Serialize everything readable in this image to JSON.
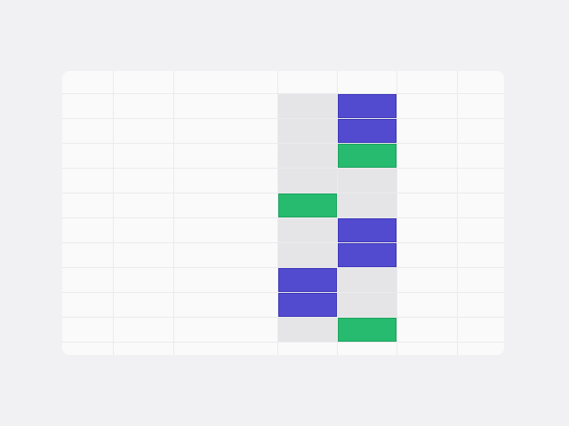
{
  "colors": {
    "background": "#f1f1f3",
    "cell": "#fafafa",
    "gridline": "#ebebed",
    "gray": "#e5e5e7",
    "blue": "#524bd0",
    "green": "#26bb6f"
  },
  "grid": {
    "columns": 7,
    "rows": [
      [
        "",
        "",
        "",
        "",
        "",
        "",
        ""
      ],
      [
        "",
        "",
        "",
        "gray",
        "blue",
        "",
        ""
      ],
      [
        "",
        "",
        "",
        "gray",
        "blue",
        "",
        ""
      ],
      [
        "",
        "",
        "",
        "gray",
        "green",
        "",
        ""
      ],
      [
        "",
        "",
        "",
        "gray",
        "gray",
        "",
        ""
      ],
      [
        "",
        "",
        "",
        "green",
        "gray",
        "",
        ""
      ],
      [
        "",
        "",
        "",
        "gray",
        "blue",
        "",
        ""
      ],
      [
        "",
        "",
        "",
        "gray",
        "blue",
        "",
        ""
      ],
      [
        "",
        "",
        "",
        "blue",
        "gray",
        "",
        ""
      ],
      [
        "",
        "",
        "",
        "blue",
        "gray",
        "",
        ""
      ],
      [
        "",
        "",
        "",
        "gray",
        "green",
        "",
        ""
      ],
      [
        "",
        "",
        "",
        "",
        "",
        "",
        ""
      ]
    ]
  }
}
